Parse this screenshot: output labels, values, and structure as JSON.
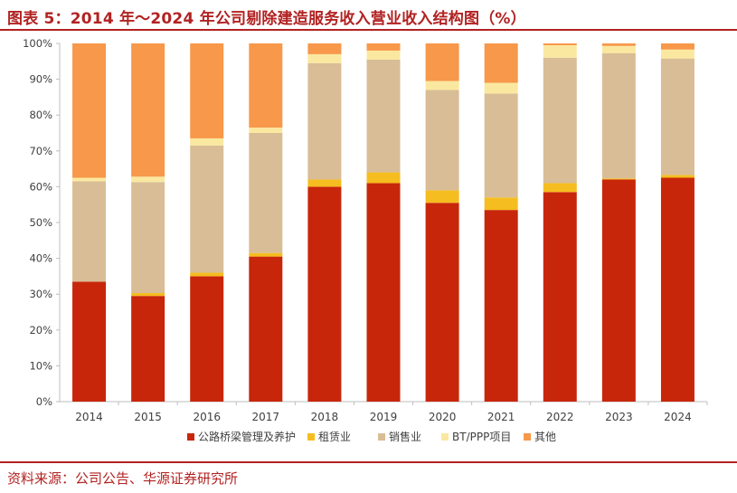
{
  "title": "图表 5：2014 年～2024 年公司剔除建造服务收入营业收入结构图（%）",
  "source": "资料来源：公司公告、华源证券研究所",
  "chart_data": {
    "type": "bar",
    "stacked": true,
    "percent_stacked": true,
    "categories": [
      "2014",
      "2015",
      "2016",
      "2017",
      "2018",
      "2019",
      "2020",
      "2021",
      "2022",
      "2023",
      "2024"
    ],
    "series": [
      {
        "name": "公路桥梁管理及养护",
        "color": "#c8260a",
        "values": [
          33.5,
          29.5,
          35.0,
          40.5,
          60.0,
          61.0,
          55.5,
          53.5,
          58.5,
          62.0,
          62.5
        ]
      },
      {
        "name": "租赁业",
        "color": "#f5bd1f",
        "values": [
          0.0,
          0.8,
          1.0,
          1.0,
          2.0,
          3.0,
          3.5,
          3.5,
          2.5,
          0.3,
          0.8
        ]
      },
      {
        "name": "销售业",
        "color": "#d9bd96",
        "values": [
          28.0,
          31.0,
          35.5,
          33.5,
          32.5,
          31.5,
          28.0,
          29.0,
          35.0,
          35.0,
          32.5
        ]
      },
      {
        "name": "BT/PPP项目",
        "color": "#fbe8a0",
        "values": [
          1.0,
          1.5,
          2.0,
          1.5,
          2.5,
          2.5,
          2.5,
          3.0,
          3.5,
          2.0,
          2.5
        ]
      },
      {
        "name": "其他",
        "color": "#f7984a",
        "values": [
          37.5,
          37.2,
          26.5,
          23.5,
          3.0,
          2.0,
          10.5,
          11.0,
          0.5,
          0.7,
          1.7
        ]
      }
    ],
    "yticks": [
      "0%",
      "10%",
      "20%",
      "30%",
      "40%",
      "50%",
      "60%",
      "70%",
      "80%",
      "90%",
      "100%"
    ],
    "ylim": [
      0,
      100
    ],
    "grid": false,
    "legend_position": "bottom"
  }
}
